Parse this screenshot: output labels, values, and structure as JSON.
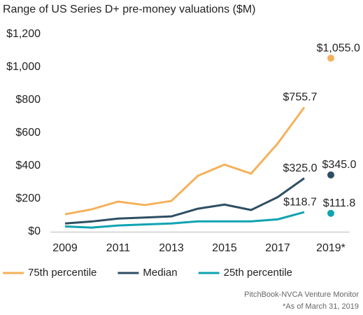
{
  "chart_data": {
    "type": "line",
    "title": "Range of US Series D+ pre-money valuations ($M)",
    "categories": [
      "2009",
      null,
      "2011",
      null,
      "2013",
      null,
      "2015",
      null,
      "2017",
      null,
      "2019*"
    ],
    "partial_last": true,
    "series": [
      {
        "name": "75th percentile",
        "color": "#f5b15a",
        "values": [
          106,
          136,
          183,
          162,
          187,
          340,
          408,
          353,
          536,
          755.7,
          1055
        ],
        "value_labels": [
          null,
          null,
          null,
          null,
          null,
          null,
          null,
          null,
          null,
          "$755.7",
          "$1,055.0"
        ]
      },
      {
        "name": "Median",
        "color": "#2e4e63",
        "values": [
          50,
          62,
          80,
          86,
          93,
          140,
          165,
          132,
          210,
          325,
          345
        ],
        "value_labels": [
          null,
          null,
          null,
          null,
          null,
          null,
          null,
          null,
          null,
          "$325.0",
          "$345.0"
        ]
      },
      {
        "name": "25th percentile",
        "color": "#0fa3b1",
        "values": [
          32,
          25,
          38,
          44,
          50,
          63,
          63,
          63,
          75,
          118.7,
          111.8
        ],
        "value_labels": [
          null,
          null,
          null,
          null,
          null,
          null,
          null,
          null,
          null,
          "$118.7",
          "$111.8"
        ]
      }
    ],
    "ylim": [
      0,
      1200
    ],
    "yticks": [
      {
        "value": 0,
        "label": "$0"
      },
      {
        "value": 200,
        "label": "$200"
      },
      {
        "value": 400,
        "label": "$400"
      },
      {
        "value": 600,
        "label": "$600"
      },
      {
        "value": 800,
        "label": "$800"
      },
      {
        "value": 1000,
        "label": "$1,000"
      },
      {
        "value": 1200,
        "label": "$1,200"
      }
    ],
    "legend": "bottom",
    "source": "PitchBook-NVCA Venture Monitor",
    "note": "*As of March 31, 2019"
  }
}
